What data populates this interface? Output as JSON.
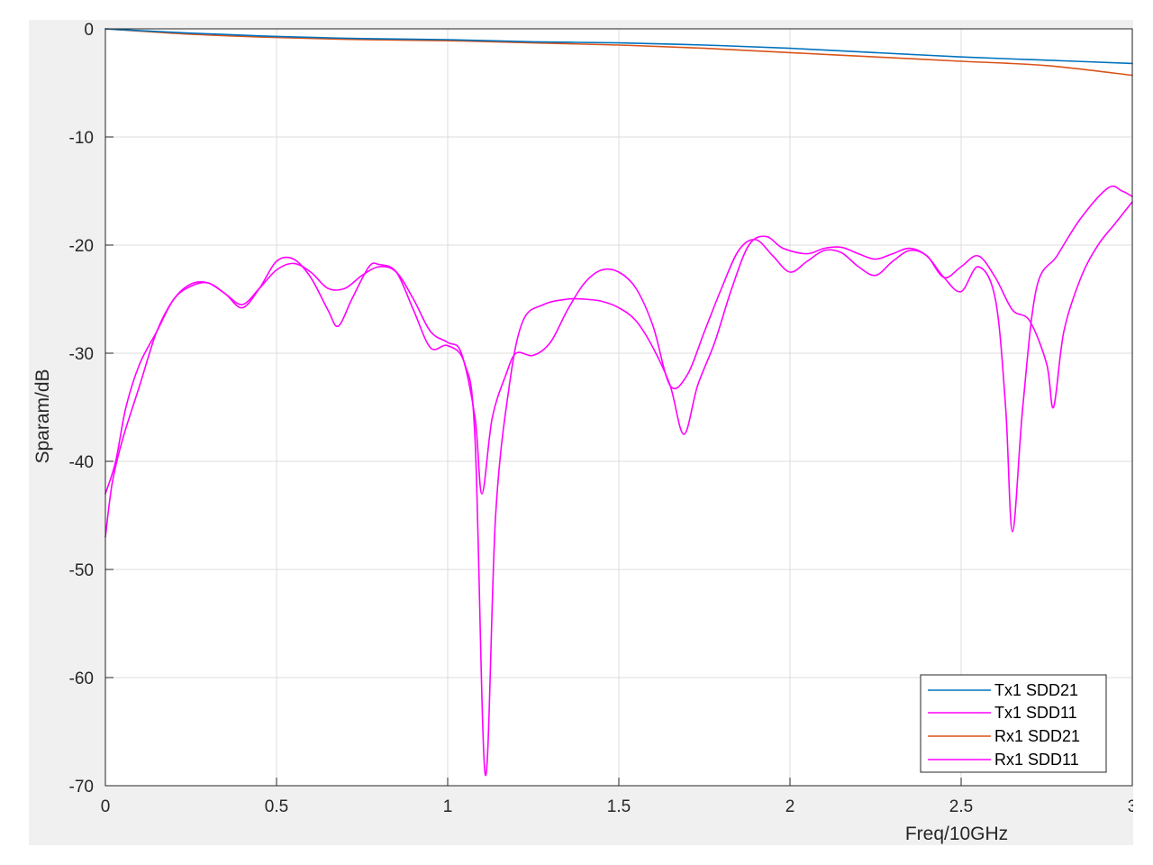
{
  "chart_data": {
    "type": "line",
    "title": "",
    "xlabel": "Freq/10GHz",
    "ylabel": "Sparam/dB",
    "xlim": [
      0,
      3
    ],
    "ylim": [
      -70,
      0
    ],
    "xticks": [
      0,
      0.5,
      1,
      1.5,
      2,
      2.5,
      3
    ],
    "xtick_labels": [
      "0",
      "0.5",
      "1",
      "1.5",
      "2",
      "2.5",
      "3"
    ],
    "yticks": [
      0,
      -10,
      -20,
      -30,
      -40,
      -50,
      -60,
      -70
    ],
    "ytick_labels": [
      "0",
      "-10",
      "-20",
      "-30",
      "-40",
      "-50",
      "-60",
      "-70"
    ],
    "grid": true,
    "legend_position": "bottom-right",
    "series": [
      {
        "name": "Tx1 SDD21",
        "color": "#0072BD",
        "points": [
          [
            0,
            0
          ],
          [
            0.25,
            -0.4
          ],
          [
            0.5,
            -0.7
          ],
          [
            0.75,
            -0.9
          ],
          [
            1,
            -1.0
          ],
          [
            1.25,
            -1.2
          ],
          [
            1.5,
            -1.3
          ],
          [
            1.75,
            -1.5
          ],
          [
            2,
            -1.8
          ],
          [
            2.25,
            -2.2
          ],
          [
            2.5,
            -2.6
          ],
          [
            2.75,
            -2.9
          ],
          [
            3,
            -3.2
          ]
        ]
      },
      {
        "name": "Tx1 SDD11",
        "color": "#FF00FF",
        "points": [
          [
            0,
            -47
          ],
          [
            0.02,
            -42
          ],
          [
            0.05,
            -38
          ],
          [
            0.1,
            -33
          ],
          [
            0.15,
            -28
          ],
          [
            0.2,
            -25
          ],
          [
            0.25,
            -23.6
          ],
          [
            0.3,
            -23.5
          ],
          [
            0.35,
            -24.5
          ],
          [
            0.4,
            -25.5
          ],
          [
            0.45,
            -24
          ],
          [
            0.5,
            -22.3
          ],
          [
            0.55,
            -21.7
          ],
          [
            0.6,
            -22.5
          ],
          [
            0.65,
            -24
          ],
          [
            0.7,
            -24
          ],
          [
            0.75,
            -22.8
          ],
          [
            0.8,
            -22
          ],
          [
            0.85,
            -22.5
          ],
          [
            0.9,
            -25
          ],
          [
            0.95,
            -28
          ],
          [
            1,
            -29
          ],
          [
            1.04,
            -30
          ],
          [
            1.08,
            -36
          ],
          [
            1.1,
            -43
          ],
          [
            1.13,
            -36
          ],
          [
            1.17,
            -32
          ],
          [
            1.2,
            -30
          ],
          [
            1.25,
            -30.2
          ],
          [
            1.3,
            -29
          ],
          [
            1.35,
            -26
          ],
          [
            1.4,
            -23.5
          ],
          [
            1.45,
            -22.3
          ],
          [
            1.5,
            -22.5
          ],
          [
            1.55,
            -24
          ],
          [
            1.6,
            -27.5
          ],
          [
            1.65,
            -33
          ],
          [
            1.7,
            -32
          ],
          [
            1.75,
            -28
          ],
          [
            1.8,
            -24
          ],
          [
            1.85,
            -20.5
          ],
          [
            1.9,
            -19.5
          ],
          [
            1.95,
            -21
          ],
          [
            2,
            -22.5
          ],
          [
            2.05,
            -21.5
          ],
          [
            2.1,
            -20.5
          ],
          [
            2.15,
            -20.7
          ],
          [
            2.2,
            -22
          ],
          [
            2.25,
            -22.8
          ],
          [
            2.3,
            -21.5
          ],
          [
            2.35,
            -20.5
          ],
          [
            2.4,
            -21
          ],
          [
            2.45,
            -23
          ],
          [
            2.5,
            -22
          ],
          [
            2.55,
            -21
          ],
          [
            2.6,
            -23
          ],
          [
            2.65,
            -26
          ],
          [
            2.7,
            -27
          ],
          [
            2.75,
            -31
          ],
          [
            2.77,
            -35
          ],
          [
            2.8,
            -28
          ],
          [
            2.85,
            -23
          ],
          [
            2.9,
            -20
          ],
          [
            2.95,
            -18
          ],
          [
            3,
            -16
          ]
        ]
      },
      {
        "name": "Rx1 SDD21",
        "color": "#D95319",
        "points": [
          [
            0,
            0
          ],
          [
            0.25,
            -0.5
          ],
          [
            0.5,
            -0.8
          ],
          [
            0.75,
            -1.0
          ],
          [
            1,
            -1.1
          ],
          [
            1.25,
            -1.3
          ],
          [
            1.5,
            -1.5
          ],
          [
            1.75,
            -1.8
          ],
          [
            2,
            -2.2
          ],
          [
            2.25,
            -2.6
          ],
          [
            2.5,
            -3.0
          ],
          [
            2.75,
            -3.4
          ],
          [
            3,
            -4.3
          ]
        ]
      },
      {
        "name": "Rx1 SDD11",
        "color": "#FF00FF",
        "points": [
          [
            0,
            -43
          ],
          [
            0.03,
            -40
          ],
          [
            0.06,
            -35
          ],
          [
            0.1,
            -31
          ],
          [
            0.15,
            -28
          ],
          [
            0.2,
            -25
          ],
          [
            0.25,
            -23.8
          ],
          [
            0.3,
            -23.5
          ],
          [
            0.35,
            -24.5
          ],
          [
            0.4,
            -25.8
          ],
          [
            0.45,
            -24
          ],
          [
            0.5,
            -21.5
          ],
          [
            0.55,
            -21.3
          ],
          [
            0.6,
            -23
          ],
          [
            0.65,
            -26
          ],
          [
            0.68,
            -27.5
          ],
          [
            0.72,
            -25
          ],
          [
            0.77,
            -22
          ],
          [
            0.8,
            -21.8
          ],
          [
            0.85,
            -22.5
          ],
          [
            0.9,
            -26
          ],
          [
            0.95,
            -29.5
          ],
          [
            1,
            -29.3
          ],
          [
            1.05,
            -31
          ],
          [
            1.08,
            -38
          ],
          [
            1.11,
            -69
          ],
          [
            1.14,
            -45
          ],
          [
            1.18,
            -33
          ],
          [
            1.22,
            -27
          ],
          [
            1.28,
            -25.5
          ],
          [
            1.35,
            -25
          ],
          [
            1.4,
            -25
          ],
          [
            1.45,
            -25.2
          ],
          [
            1.5,
            -25.8
          ],
          [
            1.55,
            -27
          ],
          [
            1.6,
            -29.5
          ],
          [
            1.65,
            -33
          ],
          [
            1.69,
            -37.5
          ],
          [
            1.73,
            -33
          ],
          [
            1.78,
            -29
          ],
          [
            1.83,
            -24
          ],
          [
            1.88,
            -20
          ],
          [
            1.93,
            -19.2
          ],
          [
            1.98,
            -20.3
          ],
          [
            2.05,
            -20.8
          ],
          [
            2.1,
            -20.3
          ],
          [
            2.15,
            -20.2
          ],
          [
            2.2,
            -20.8
          ],
          [
            2.25,
            -21.3
          ],
          [
            2.3,
            -20.8
          ],
          [
            2.35,
            -20.3
          ],
          [
            2.4,
            -21
          ],
          [
            2.45,
            -23
          ],
          [
            2.5,
            -24.3
          ],
          [
            2.55,
            -22
          ],
          [
            2.6,
            -25
          ],
          [
            2.63,
            -35
          ],
          [
            2.65,
            -46.5
          ],
          [
            2.68,
            -35
          ],
          [
            2.72,
            -24
          ],
          [
            2.78,
            -21
          ],
          [
            2.85,
            -17.5
          ],
          [
            2.93,
            -14.7
          ],
          [
            2.97,
            -15
          ],
          [
            3,
            -15.5
          ]
        ]
      }
    ]
  }
}
